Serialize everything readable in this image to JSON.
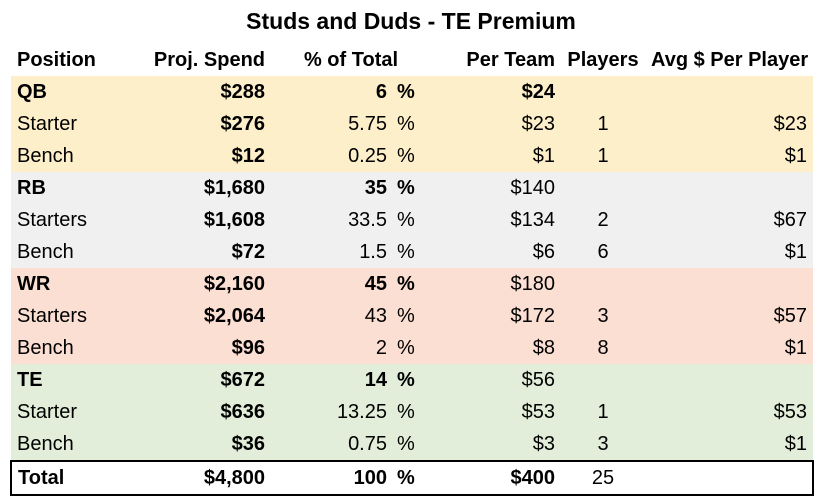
{
  "title": "Studs and Duds - TE Premium",
  "headers": {
    "position": "Position",
    "proj_spend": "Proj. Spend",
    "pct_total": "% of Total",
    "per_team": "Per Team",
    "players": "Players",
    "avg_per_player": "Avg $ Per Player"
  },
  "percent_sign": "%",
  "groups": [
    {
      "summary": {
        "position": "QB",
        "spend": "$288",
        "pct": "6",
        "per_team": "$24"
      },
      "rows": [
        {
          "position": "Starter",
          "spend": "$276",
          "pct": "5.75",
          "per_team": "$23",
          "players": "1",
          "avg": "$23"
        },
        {
          "position": "Bench",
          "spend": "$12",
          "pct": "0.25",
          "per_team": "$1",
          "players": "1",
          "avg": "$1"
        }
      ]
    },
    {
      "summary": {
        "position": "RB",
        "spend": "$1,680",
        "pct": "35",
        "per_team": "$140"
      },
      "rows": [
        {
          "position": "Starters",
          "spend": "$1,608",
          "pct": "33.5",
          "per_team": "$134",
          "players": "2",
          "avg": "$67"
        },
        {
          "position": "Bench",
          "spend": "$72",
          "pct": "1.5",
          "per_team": "$6",
          "players": "6",
          "avg": "$1"
        }
      ]
    },
    {
      "summary": {
        "position": "WR",
        "spend": "$2,160",
        "pct": "45",
        "per_team": "$180"
      },
      "rows": [
        {
          "position": "Starters",
          "spend": "$2,064",
          "pct": "43",
          "per_team": "$172",
          "players": "3",
          "avg": "$57"
        },
        {
          "position": "Bench",
          "spend": "$96",
          "pct": "2",
          "per_team": "$8",
          "players": "8",
          "avg": "$1"
        }
      ]
    },
    {
      "summary": {
        "position": "TE",
        "spend": "$672",
        "pct": "14",
        "per_team": "$56"
      },
      "rows": [
        {
          "position": "Starter",
          "spend": "$636",
          "pct": "13.25",
          "per_team": "$53",
          "players": "1",
          "avg": "$53"
        },
        {
          "position": "Bench",
          "spend": "$36",
          "pct": "0.75",
          "per_team": "$3",
          "players": "3",
          "avg": "$1"
        }
      ]
    }
  ],
  "total": {
    "position": "Total",
    "spend": "$4,800",
    "pct": "100",
    "per_team": "$400",
    "players": "25"
  }
}
